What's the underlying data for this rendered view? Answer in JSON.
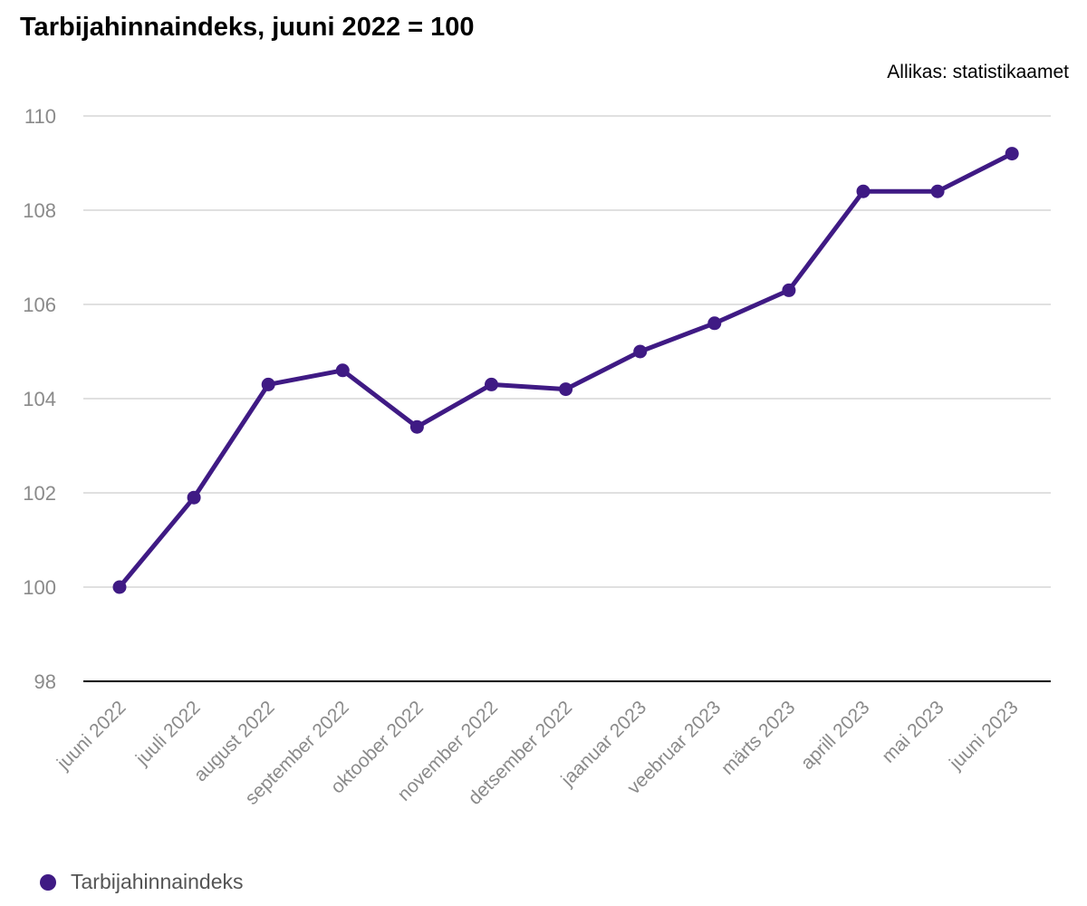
{
  "chart_data": {
    "type": "line",
    "title": "Tarbijahinnaindeks, juuni 2022 = 100",
    "source": "Allikas: statistikaamet",
    "xlabel": "",
    "ylabel": "",
    "categories": [
      "juuni 2022",
      "juuli 2022",
      "august 2022",
      "september 2022",
      "oktoober 2022",
      "november 2022",
      "detsember 2022",
      "jaanuar 2023",
      "veebruar 2023",
      "märts 2023",
      "aprill 2023",
      "mai 2023",
      "juuni 2023"
    ],
    "series": [
      {
        "name": "Tarbijahinnaindeks",
        "color": "#3f1a84",
        "values": [
          100.0,
          101.9,
          104.3,
          104.6,
          103.4,
          104.3,
          104.2,
          105.0,
          105.6,
          106.3,
          108.4,
          108.4,
          109.2
        ]
      }
    ],
    "ylim": [
      98,
      110
    ],
    "yticks": [
      98,
      100,
      102,
      104,
      106,
      108,
      110
    ],
    "grid": true,
    "legend": "bottom-left"
  }
}
